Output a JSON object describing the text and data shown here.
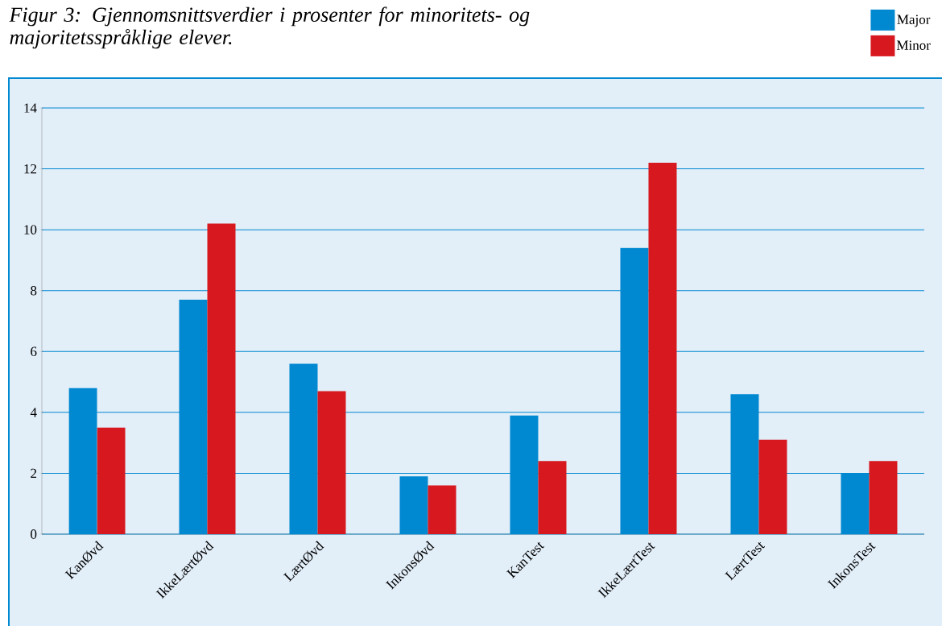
{
  "chart_data": {
    "type": "bar",
    "title": "Figur 3: Gjennomsnittsverdier i prosenter for minoritets- og majoritetsspråklige elever.",
    "categories": [
      "KanØvd",
      "IkkeLærtØvd",
      "LærtØvd",
      "InkonsØvd",
      "KanTest",
      "IkkeLærtTest",
      "LærtTest",
      "InkonsTest"
    ],
    "series": [
      {
        "name": "Major",
        "color": "#0088d1",
        "values": [
          4.8,
          7.7,
          5.6,
          1.9,
          3.9,
          9.4,
          4.6,
          2.0
        ]
      },
      {
        "name": "Minor",
        "color": "#d7191f",
        "values": [
          3.5,
          10.2,
          4.7,
          1.6,
          2.4,
          12.2,
          3.1,
          2.4
        ]
      }
    ],
    "ylim": [
      0,
      14
    ],
    "yticks": [
      0,
      2,
      4,
      6,
      8,
      10,
      12,
      14
    ],
    "grid": "y",
    "legend": "top right"
  }
}
